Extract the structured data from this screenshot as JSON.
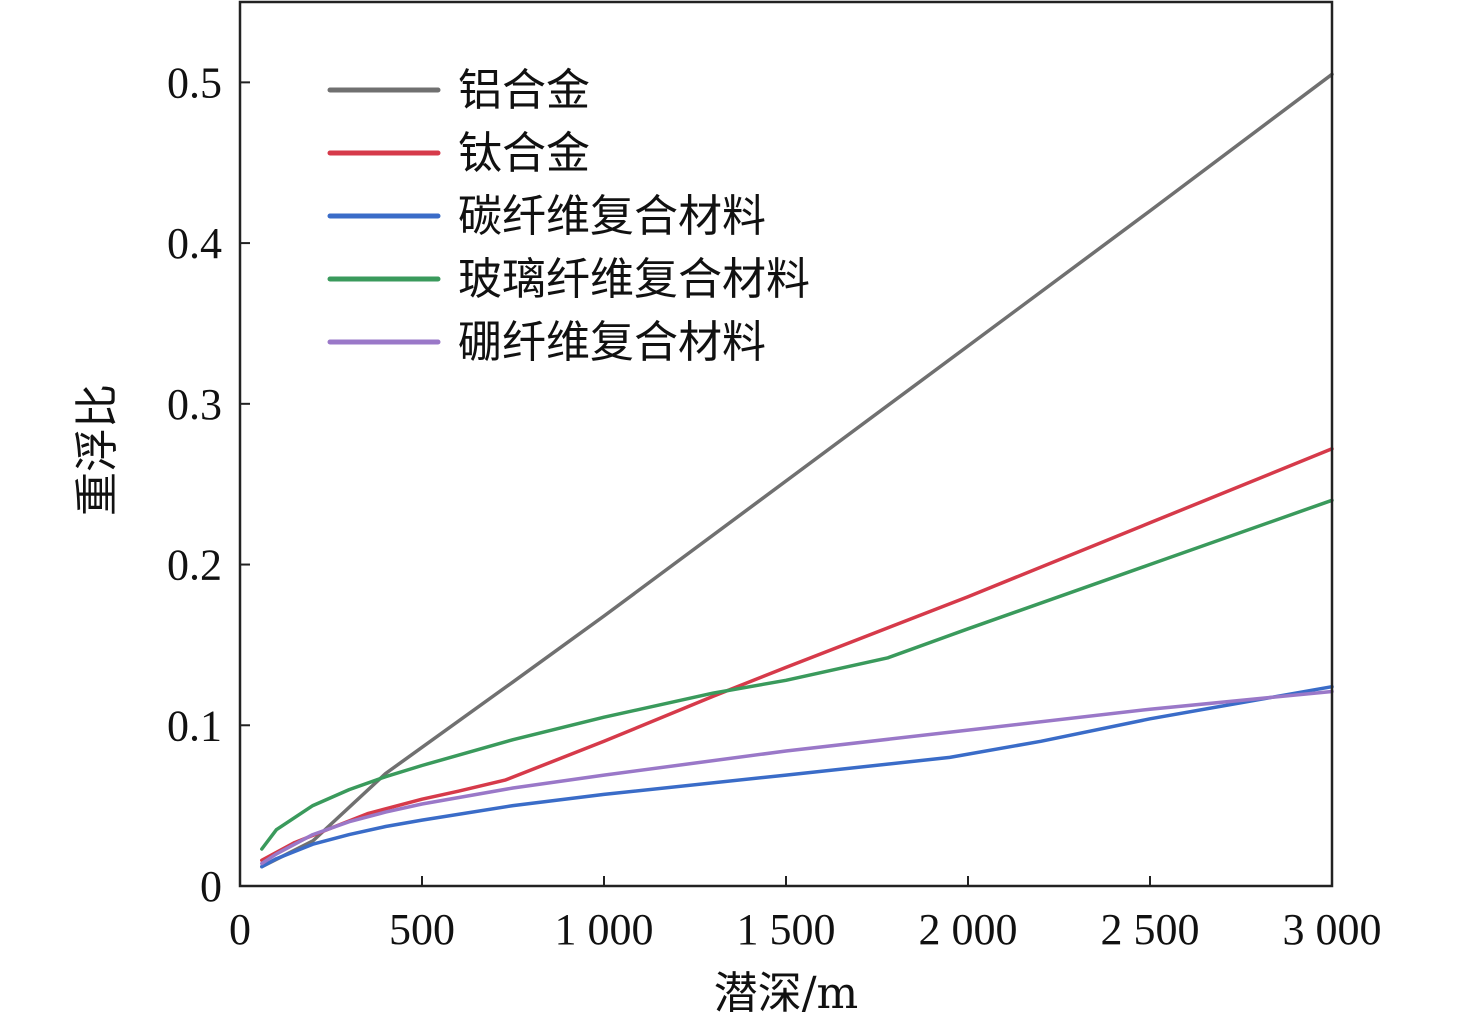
{
  "chart_data": {
    "type": "line",
    "title": "",
    "xlabel": "潜深/m",
    "ylabel": "重浮比",
    "xlim": [
      0,
      3000
    ],
    "ylim": [
      0,
      0.55
    ],
    "xticks": [
      0,
      500,
      1000,
      1500,
      2000,
      2500,
      3000
    ],
    "xtick_labels": [
      "0",
      "500",
      "1 000",
      "1 500",
      "2 000",
      "2 500",
      "3 000"
    ],
    "yticks": [
      0,
      0.1,
      0.2,
      0.3,
      0.4,
      0.5
    ],
    "ytick_labels": [
      "0",
      "0.1",
      "0.2",
      "0.3",
      "0.4",
      "0.5"
    ],
    "grid": false,
    "legend_position": "top-left",
    "series": [
      {
        "name": "铝合金",
        "color": "#707070",
        "x": [
          60,
          200,
          400,
          750,
          1000,
          1500,
          2000,
          2500,
          3000
        ],
        "y": [
          0.012,
          0.028,
          0.07,
          0.127,
          0.168,
          0.252,
          0.336,
          0.42,
          0.505
        ]
      },
      {
        "name": "钛合金",
        "color": "#d63a4a",
        "x": [
          60,
          150,
          250,
          350,
          500,
          600,
          730,
          1000,
          1300,
          1500,
          2000,
          2500,
          3000
        ],
        "y": [
          0.016,
          0.027,
          0.036,
          0.045,
          0.054,
          0.059,
          0.066,
          0.09,
          0.118,
          0.136,
          0.18,
          0.226,
          0.272
        ]
      },
      {
        "name": "碳纤维复合材料",
        "color": "#3a6cc8",
        "x": [
          60,
          100,
          200,
          300,
          400,
          500,
          750,
          1000,
          1500,
          1950,
          2200,
          2500,
          3000
        ],
        "y": [
          0.012,
          0.017,
          0.026,
          0.032,
          0.037,
          0.041,
          0.05,
          0.057,
          0.069,
          0.08,
          0.09,
          0.104,
          0.124
        ]
      },
      {
        "name": "玻璃纤维复合材料",
        "color": "#3a9a5c",
        "x": [
          60,
          100,
          200,
          300,
          400,
          500,
          750,
          1000,
          1300,
          1500,
          1780,
          2000,
          2500,
          3000
        ],
        "y": [
          0.023,
          0.035,
          0.05,
          0.06,
          0.068,
          0.075,
          0.091,
          0.105,
          0.12,
          0.128,
          0.142,
          0.16,
          0.2,
          0.24
        ]
      },
      {
        "name": "硼纤维复合材料",
        "color": "#9a78c8",
        "x": [
          60,
          100,
          200,
          300,
          400,
          500,
          750,
          1000,
          1500,
          2000,
          2500,
          3000
        ],
        "y": [
          0.014,
          0.02,
          0.032,
          0.04,
          0.046,
          0.051,
          0.061,
          0.069,
          0.084,
          0.097,
          0.11,
          0.121
        ]
      }
    ]
  }
}
